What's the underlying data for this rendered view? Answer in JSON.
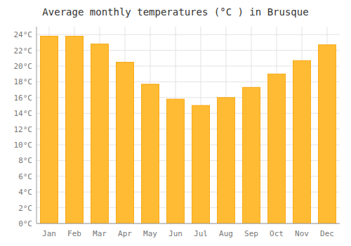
{
  "chart_data": {
    "type": "bar",
    "title": "Average monthly temperatures (°C ) in Brusque",
    "categories": [
      "Jan",
      "Feb",
      "Mar",
      "Apr",
      "May",
      "Jun",
      "Jul",
      "Aug",
      "Sep",
      "Oct",
      "Nov",
      "Dec"
    ],
    "values": [
      23.8,
      23.8,
      22.8,
      20.5,
      17.7,
      15.8,
      15.0,
      16.0,
      17.3,
      19.0,
      20.7,
      22.7
    ],
    "color": "#FFBB33",
    "ylim": [
      0,
      25
    ],
    "yticks": [
      {
        "value": 0,
        "label": "0°C"
      },
      {
        "value": 2,
        "label": "2°C"
      },
      {
        "value": 4,
        "label": "4°C"
      },
      {
        "value": 6,
        "label": "6°C"
      },
      {
        "value": 8,
        "label": "8°C"
      },
      {
        "value": 10,
        "label": "10°C"
      },
      {
        "value": 12,
        "label": "12°C"
      },
      {
        "value": 14,
        "label": "14°C"
      },
      {
        "value": 16,
        "label": "16°C"
      },
      {
        "value": 18,
        "label": "18°C"
      },
      {
        "value": 20,
        "label": "20°C"
      },
      {
        "value": 22,
        "label": "22°C"
      },
      {
        "value": 24,
        "label": "24°C"
      }
    ],
    "grid": true
  }
}
